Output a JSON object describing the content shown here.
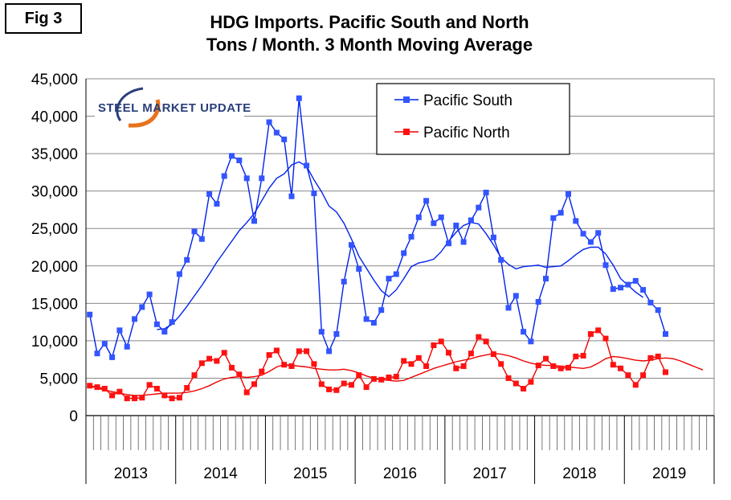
{
  "figure_label": "Fig 3",
  "logo_text": "STEEL MARKET UPDATE",
  "colors": {
    "pacific_south": "#0022ee",
    "pacific_north": "#ee0000",
    "south_marker": "#3355ff",
    "north_marker": "#ff1111",
    "grid": "#888888",
    "logo_swoosh": "#e8731c"
  },
  "chart_data": {
    "type": "line",
    "title": "HDG Imports. Pacific South and North",
    "subtitle": "Tons / Month. 3 Month Moving Average",
    "xlabel": "",
    "ylabel": "",
    "ylim": [
      0,
      45000
    ],
    "yticks": [
      "0",
      "5,000",
      "10,000",
      "15,000",
      "20,000",
      "25,000",
      "30,000",
      "35,000",
      "40,000",
      "45,000"
    ],
    "year_labels": [
      "2013",
      "2014",
      "2015",
      "2016",
      "2017",
      "2018",
      "2019"
    ],
    "months_total": 84,
    "grid": true,
    "legend_position": "top-right",
    "series": [
      {
        "name": "Pacific South",
        "kind": "monthly",
        "values": [
          13500,
          8300,
          9600,
          7800,
          11400,
          9200,
          12900,
          14500,
          16200,
          12200,
          11200,
          12500,
          18900,
          20800,
          24600,
          23600,
          29600,
          28300,
          32000,
          34700,
          34100,
          31700,
          26000,
          31700,
          39200,
          37800,
          36900,
          29300,
          42400,
          33400,
          29700,
          11200,
          8600,
          10900,
          17900,
          22800,
          19600,
          12900,
          12400,
          14100,
          18300,
          18900,
          21700,
          23900,
          26500,
          28700,
          25700,
          26500,
          23000,
          25400,
          23200,
          26100,
          27800,
          29800,
          23800,
          20800,
          14400,
          16000,
          11200,
          9900,
          15200,
          18300,
          26400,
          27100,
          29600,
          26000,
          24300,
          23200,
          24400,
          20100,
          16900,
          17100,
          17500,
          18000,
          16800,
          15100,
          14100,
          10900
        ]
      },
      {
        "name": "Pacific North",
        "kind": "monthly",
        "values": [
          4000,
          3800,
          3600,
          2700,
          3200,
          2300,
          2300,
          2400,
          4100,
          3600,
          2700,
          2300,
          2400,
          3700,
          5400,
          7000,
          7600,
          7300,
          8400,
          6400,
          5500,
          3100,
          4200,
          5900,
          8100,
          8700,
          6800,
          6600,
          8600,
          8600,
          6900,
          4200,
          3500,
          3400,
          4300,
          4100,
          5400,
          3800,
          4900,
          4800,
          5100,
          5200,
          7300,
          6900,
          7700,
          6600,
          9400,
          9900,
          8400,
          6300,
          6600,
          8300,
          10500,
          9900,
          8200,
          6900,
          5000,
          4300,
          3600,
          4500,
          6700,
          7600,
          6600,
          6300,
          6400,
          7900,
          8000,
          10900,
          11400,
          10300,
          6800,
          6300,
          5400,
          4100,
          5400,
          7700,
          7900,
          5800
        ]
      },
      {
        "name": "Pacific South 3 Month Moving Average",
        "kind": "trend",
        "start_month": 9,
        "values": [
          11500,
          11600,
          12200,
          13300,
          14600,
          16000,
          17400,
          18900,
          20500,
          21900,
          23300,
          24700,
          25800,
          27000,
          28700,
          30400,
          31700,
          32300,
          33500,
          33900,
          33300,
          31500,
          29900,
          28000,
          27200,
          25700,
          23600,
          21300,
          19700,
          18100,
          16700,
          15900,
          16800,
          18300,
          19900,
          20400,
          20600,
          20900,
          21900,
          23300,
          24500,
          25400,
          25800,
          25600,
          24300,
          22800,
          21100,
          20200,
          19600,
          19900,
          20000,
          20100,
          19800,
          19900,
          20000,
          20700,
          21500,
          22200,
          22500,
          22500,
          21600,
          20100,
          18300,
          17400,
          16500,
          15800
        ]
      },
      {
        "name": "Pacific North 3 Month Moving Average",
        "kind": "trend",
        "start_month": 0,
        "values": [
          3900,
          3700,
          3400,
          3200,
          3000,
          2800,
          2700,
          2700,
          2800,
          2900,
          3000,
          3000,
          3000,
          3100,
          3300,
          3600,
          4000,
          4500,
          4900,
          5100,
          5200,
          5100,
          5200,
          5400,
          5900,
          6500,
          6800,
          6700,
          6600,
          6500,
          6300,
          6200,
          6100,
          6100,
          6200,
          6000,
          5700,
          5300,
          5000,
          4800,
          4700,
          4600,
          4700,
          5100,
          5500,
          5900,
          6300,
          6600,
          6900,
          7200,
          7400,
          7600,
          7900,
          8100,
          8300,
          8200,
          8000,
          7700,
          7300,
          7000,
          6800,
          6700,
          6700,
          6600,
          6500,
          6400,
          6300,
          6500,
          7000,
          7600,
          7900,
          7800,
          7600,
          7400,
          7300,
          7400,
          7600,
          7700,
          7600,
          7300,
          6900,
          6500,
          6100
        ]
      }
    ]
  }
}
